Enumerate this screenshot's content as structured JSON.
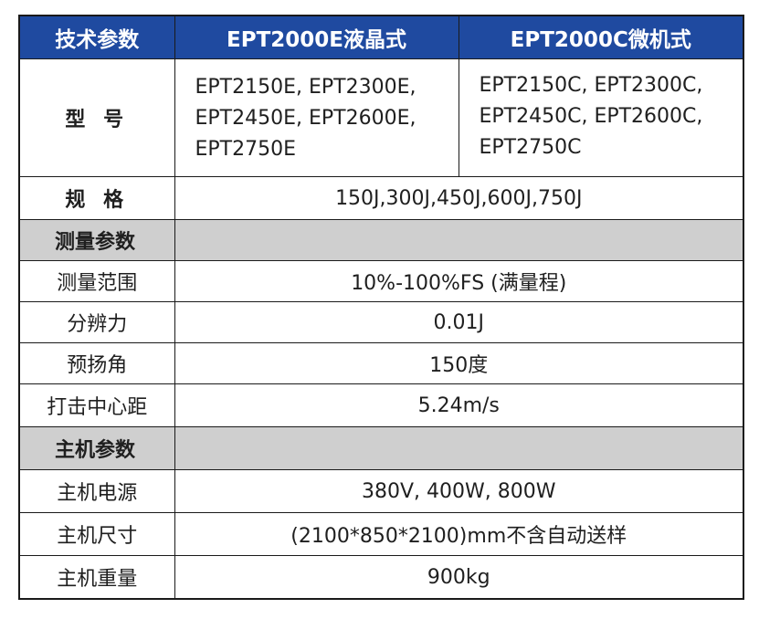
{
  "header": {
    "col1": "技术参数",
    "col2": "EPT2000E液晶式",
    "col3": "EPT2000C微机式"
  },
  "model": {
    "label": "型 号",
    "e_lines": [
      "EPT2150E, EPT2300E,",
      "EPT2450E, EPT2600E,",
      "EPT2750E"
    ],
    "c_lines": [
      "EPT2150C, EPT2300C,",
      "EPT2450C, EPT2600C,",
      "EPT2750C"
    ]
  },
  "spec": {
    "label": "规 格",
    "value": "150J,300J,450J,600J,750J"
  },
  "section_measure": "测量参数",
  "measure_rows": [
    {
      "label": "测量范围",
      "value": "10%-100%FS (满量程)"
    },
    {
      "label": "分辨力",
      "value": "0.01J"
    },
    {
      "label": "预扬角",
      "value": "150度"
    },
    {
      "label": "打击中心距",
      "value": "5.24m/s"
    }
  ],
  "section_host": "主机参数",
  "host_rows": [
    {
      "label": "主机电源",
      "value": "380V, 400W, 800W"
    },
    {
      "label": "主机尺寸",
      "value": "(2100*850*2100)mm不含自动送样"
    },
    {
      "label": "主机重量",
      "value": "900kg"
    }
  ],
  "colors": {
    "header_bg": "#1f4aa0",
    "section_bg": "#cfcfcf",
    "border": "#1a1a1a"
  }
}
